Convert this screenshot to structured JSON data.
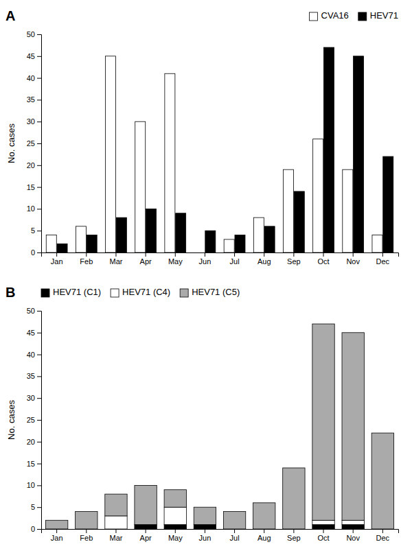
{
  "chart_data": [
    {
      "type": "bar",
      "title": "A",
      "categories": [
        "Jan",
        "Feb",
        "Mar",
        "Apr",
        "May",
        "Jun",
        "Jul",
        "Aug",
        "Sep",
        "Oct",
        "Nov",
        "Dec"
      ],
      "series": [
        {
          "name": "CVA16",
          "color": "#ffffff",
          "values": [
            4,
            6,
            45,
            30,
            41,
            0,
            3,
            8,
            19,
            26,
            19,
            4
          ]
        },
        {
          "name": "HEV71",
          "color": "#000000",
          "values": [
            2,
            4,
            8,
            10,
            9,
            5,
            4,
            6,
            14,
            47,
            45,
            22
          ]
        }
      ],
      "y_label": "No. cases",
      "ylim": [
        0,
        50
      ],
      "yticks": [
        0,
        5,
        10,
        15,
        20,
        25,
        30,
        35,
        40,
        45,
        50
      ],
      "grid": false,
      "legend": "upper right"
    },
    {
      "type": "bar",
      "title": "B",
      "stacked": true,
      "categories": [
        "Jan",
        "Feb",
        "Mar",
        "Apr",
        "May",
        "Jun",
        "Jul",
        "Aug",
        "Sep",
        "Oct",
        "Nov",
        "Dec"
      ],
      "series": [
        {
          "name": "HEV71 (C1)",
          "color": "#000000",
          "values": [
            0,
            0,
            0,
            1,
            1,
            1,
            0,
            0,
            0,
            1,
            1,
            0
          ]
        },
        {
          "name": "HEV71 (C4)",
          "color": "#ffffff",
          "values": [
            0,
            0,
            3,
            0,
            4,
            0,
            0,
            0,
            0,
            1,
            1,
            0
          ]
        },
        {
          "name": "HEV71 (C5)",
          "color": "#aaaaaa",
          "values": [
            2,
            4,
            5,
            9,
            4,
            4,
            4,
            6,
            14,
            45,
            43,
            22
          ]
        }
      ],
      "y_label": "No. cases",
      "ylim": [
        0,
        50
      ],
      "yticks": [
        0,
        5,
        10,
        15,
        20,
        25,
        30,
        35,
        40,
        45,
        50
      ],
      "grid": false,
      "legend": "upper left"
    }
  ]
}
